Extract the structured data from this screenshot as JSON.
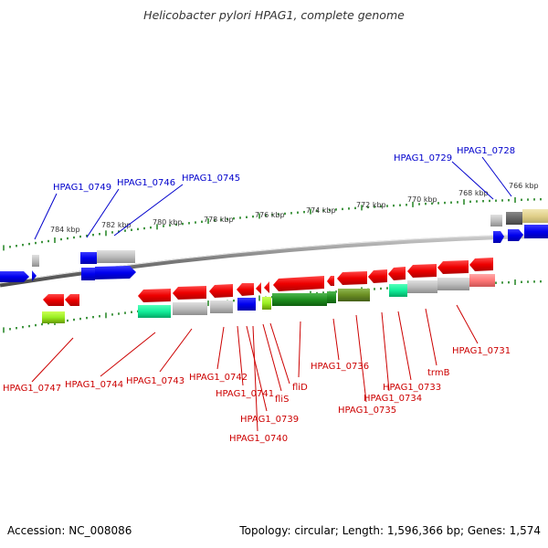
{
  "title": "Helicobacter pylori HPAG1, complete genome",
  "footer": {
    "accession": "Accession: NC_008086",
    "info": "Topology: circular; Length: 1,596,366 bp; Genes: 1,574"
  },
  "colors": {
    "top_label": "#0000cc",
    "bottom_label": "#cc0000",
    "backbone": "#8a8a8a",
    "tick": "#2e8b2e"
  },
  "kbp_labels": [
    "784 kbp",
    "782 kbp",
    "780 kbp",
    "778 kbp",
    "776 kbp",
    "774 kbp",
    "772 kbp",
    "770 kbp",
    "768 kbp",
    "766 kbp"
  ],
  "top_gene_labels": [
    "HPAG1_0749",
    "HPAG1_0746",
    "HPAG1_0745",
    "HPAG1_0729",
    "HPAG1_0728"
  ],
  "bottom_gene_labels": [
    "HPAG1_0747",
    "HPAG1_0744",
    "HPAG1_0743",
    "HPAG1_0742",
    "HPAG1_0741",
    "HPAG1_0739",
    "HPAG1_0740",
    "fliS",
    "fliD",
    "HPAG1_0736",
    "HPAG1_0735",
    "HPAG1_0734",
    "HPAG1_0733",
    "trmB",
    "HPAG1_0731"
  ]
}
